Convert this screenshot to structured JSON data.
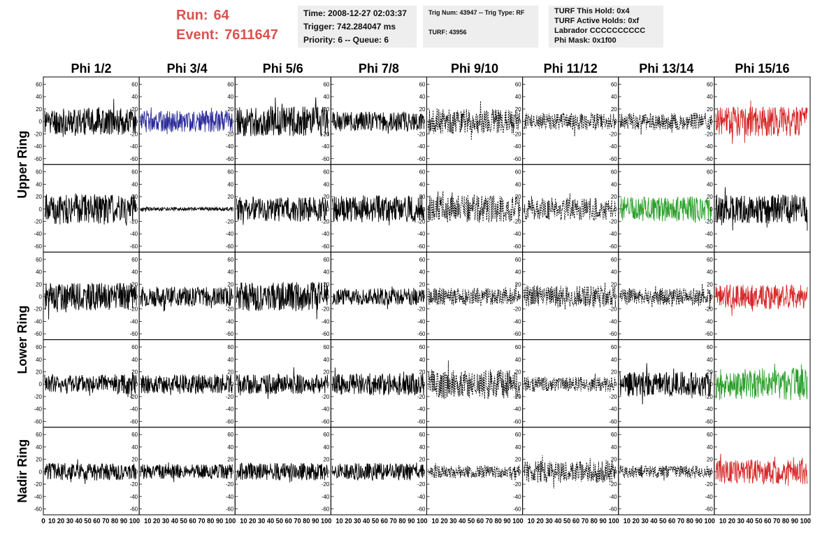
{
  "header": {
    "run_label": "Run:",
    "run_value": "64",
    "event_label": "Event:",
    "event_value": "7611647",
    "time_line": "Time: 2008-12-27 02:03:37",
    "trigger_line": "Trigger: 742.284047 ms",
    "priority_line": "Priority: 6 -- Queue: 6",
    "trig_line": "Trig Num: 43947 -- Trig Type: RF",
    "turf_line": "TURF: 43956",
    "turf_hold_line": "TURF This Hold: 0x4",
    "turf_active_line": "TURF Active Holds: 0xf",
    "labrador_line": "Labrador CCCCCCCCCC",
    "phi_mask_line": "Phi Mask: 0x1f00"
  },
  "colors": {
    "header_red": "#d9534f",
    "trace_black": "#000000",
    "trace_blue": "#2b2b9a",
    "trace_red": "#d62728",
    "trace_green": "#2ca02c",
    "box_bg": "#eeeeee"
  },
  "chart_data": {
    "type": "line",
    "title": "",
    "columns": [
      "Phi 1/2",
      "Phi 3/4",
      "Phi 5/6",
      "Phi 7/8",
      "Phi 9/10",
      "Phi 11/12",
      "Phi 13/14",
      "Phi 15/16"
    ],
    "rows": [
      "Upper Ring",
      "Upper Ring",
      "Lower Ring",
      "Lower Ring",
      "Nadir Ring"
    ],
    "row_label_texts": [
      "Upper Ring",
      "Lower Ring",
      "Nadir Ring"
    ],
    "xlim": [
      0,
      100
    ],
    "ylim": [
      -65,
      65
    ],
    "y_ticks": [
      "60",
      "40",
      "20",
      "0",
      "-20",
      "-40",
      "-60"
    ],
    "x_ticks": [
      "0",
      "10",
      "20",
      "30",
      "40",
      "50",
      "60",
      "70",
      "80",
      "90",
      "100"
    ],
    "x_tick_labels_row": [
      "0",
      "10 20 30 40 50 60 70 80 90 100",
      "10 20 30 40 50 60 70 80 90 100",
      "10 20 30 40 50 60 70 80 90 100",
      "10 20 30 40 50 60 70 80 90 100",
      "10 20 30 40 50 60 70 80 90 100",
      "10 20 30 40 50 60 70 80 90 100",
      "10 20 30 40 50 60 70 80 90 100",
      "10 20 30 40 50 60 70 80 90 100"
    ],
    "panels": [
      [
        {
          "color": "black",
          "dashed": false,
          "amp": 22,
          "seed": 11
        },
        {
          "color": "blue",
          "dashed": false,
          "amp": 18,
          "seed": 12
        },
        {
          "color": "black",
          "dashed": false,
          "amp": 24,
          "seed": 13
        },
        {
          "color": "black",
          "dashed": false,
          "amp": 16,
          "seed": 14
        },
        {
          "color": "black",
          "dashed": true,
          "amp": 20,
          "seed": 15
        },
        {
          "color": "black",
          "dashed": true,
          "amp": 14,
          "seed": 16
        },
        {
          "color": "black",
          "dashed": true,
          "amp": 14,
          "seed": 17
        },
        {
          "color": "red",
          "dashed": false,
          "amp": 24,
          "seed": 18
        }
      ],
      [
        {
          "color": "black",
          "dashed": false,
          "amp": 24,
          "seed": 21
        },
        {
          "color": "black",
          "dashed": false,
          "amp": 3,
          "seed": 22
        },
        {
          "color": "black",
          "dashed": false,
          "amp": 20,
          "seed": 23
        },
        {
          "color": "black",
          "dashed": false,
          "amp": 22,
          "seed": 24
        },
        {
          "color": "black",
          "dashed": true,
          "amp": 22,
          "seed": 25
        },
        {
          "color": "black",
          "dashed": true,
          "amp": 18,
          "seed": 26
        },
        {
          "color": "green",
          "dashed": false,
          "amp": 20,
          "seed": 27
        },
        {
          "color": "black",
          "dashed": false,
          "amp": 24,
          "seed": 28
        }
      ],
      [
        {
          "color": "black",
          "dashed": false,
          "amp": 22,
          "seed": 31
        },
        {
          "color": "black",
          "dashed": false,
          "amp": 16,
          "seed": 32
        },
        {
          "color": "black",
          "dashed": false,
          "amp": 24,
          "seed": 33
        },
        {
          "color": "black",
          "dashed": false,
          "amp": 14,
          "seed": 34
        },
        {
          "color": "black",
          "dashed": true,
          "amp": 14,
          "seed": 35
        },
        {
          "color": "black",
          "dashed": true,
          "amp": 18,
          "seed": 36
        },
        {
          "color": "black",
          "dashed": true,
          "amp": 14,
          "seed": 37
        },
        {
          "color": "red",
          "dashed": false,
          "amp": 20,
          "seed": 38
        }
      ],
      [
        {
          "color": "black",
          "dashed": false,
          "amp": 16,
          "seed": 41
        },
        {
          "color": "black",
          "dashed": false,
          "amp": 16,
          "seed": 42
        },
        {
          "color": "black",
          "dashed": false,
          "amp": 16,
          "seed": 43
        },
        {
          "color": "black",
          "dashed": false,
          "amp": 18,
          "seed": 44
        },
        {
          "color": "black",
          "dashed": true,
          "amp": 24,
          "seed": 45
        },
        {
          "color": "black",
          "dashed": true,
          "amp": 12,
          "seed": 46
        },
        {
          "color": "black",
          "dashed": false,
          "amp": 20,
          "seed": 47
        },
        {
          "color": "green",
          "dashed": false,
          "amp": 26,
          "seed": 48
        }
      ],
      [
        {
          "color": "black",
          "dashed": false,
          "amp": 14,
          "seed": 51
        },
        {
          "color": "black",
          "dashed": false,
          "amp": 12,
          "seed": 52
        },
        {
          "color": "black",
          "dashed": false,
          "amp": 14,
          "seed": 53
        },
        {
          "color": "black",
          "dashed": false,
          "amp": 14,
          "seed": 54
        },
        {
          "color": "black",
          "dashed": true,
          "amp": 10,
          "seed": 55
        },
        {
          "color": "black",
          "dashed": true,
          "amp": 18,
          "seed": 56
        },
        {
          "color": "black",
          "dashed": true,
          "amp": 10,
          "seed": 57
        },
        {
          "color": "red",
          "dashed": false,
          "amp": 20,
          "seed": 58
        }
      ]
    ]
  }
}
